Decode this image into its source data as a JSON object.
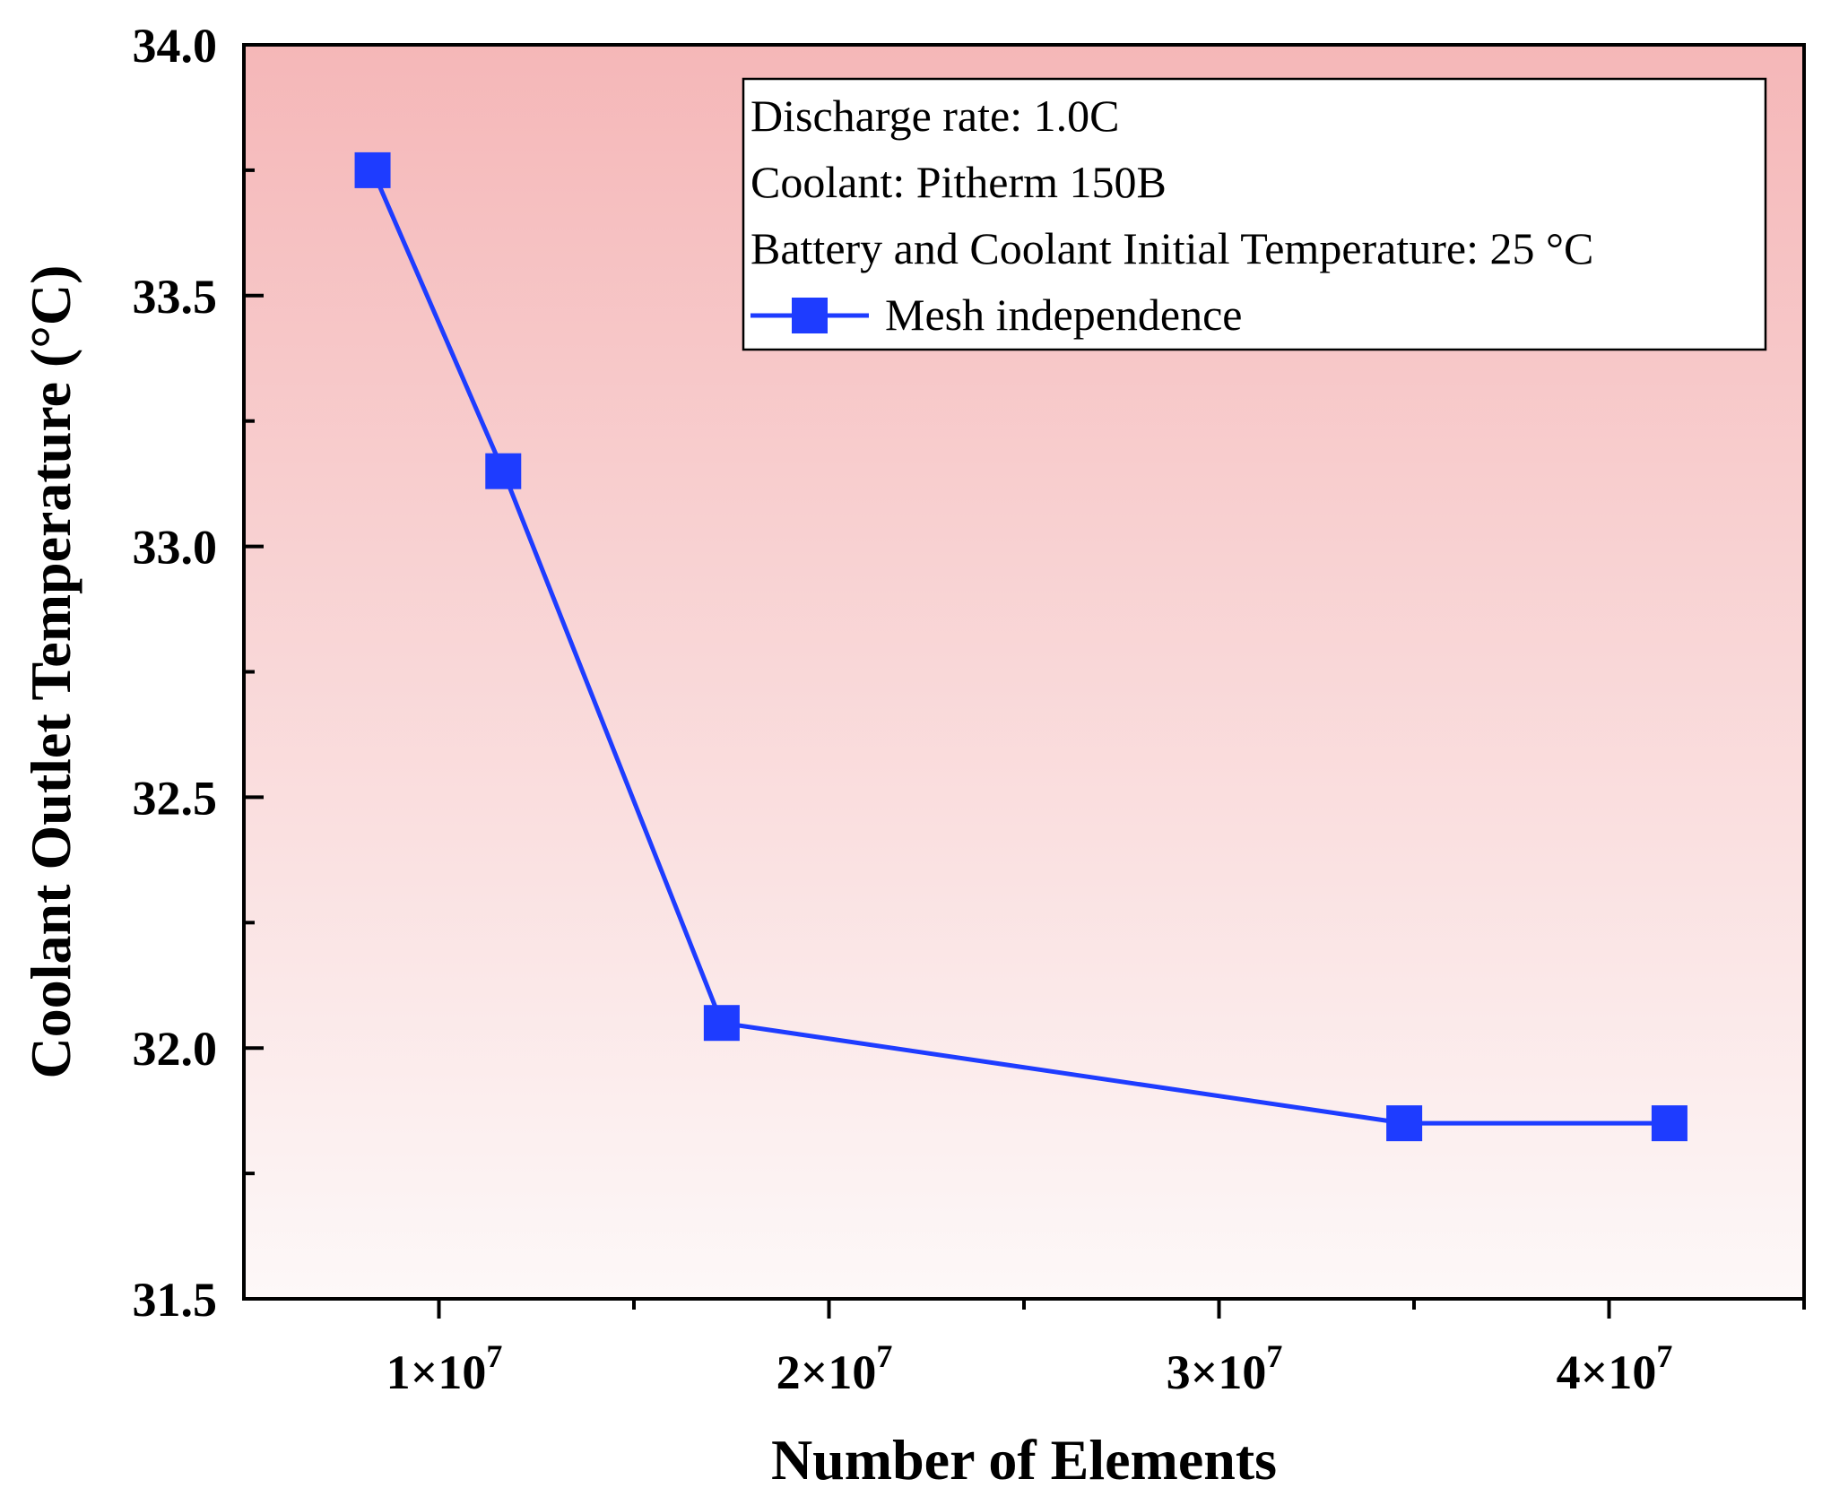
{
  "chart_data": {
    "type": "line",
    "title": "",
    "xlabel": "Number of Elements",
    "ylabel": "Coolant Outlet Temperature (°C)",
    "xlim": [
      5000000,
      45000000
    ],
    "ylim": [
      31.5,
      34.0
    ],
    "x_ticks": [
      {
        "value": 10000000,
        "mantissa": "1×10",
        "exp": "7"
      },
      {
        "value": 20000000,
        "mantissa": "2×10",
        "exp": "7"
      },
      {
        "value": 30000000,
        "mantissa": "3×10",
        "exp": "7"
      },
      {
        "value": 40000000,
        "mantissa": "4×10",
        "exp": "7"
      }
    ],
    "y_ticks": [
      "31.5",
      "32.0",
      "32.5",
      "33.0",
      "33.5",
      "34.0"
    ],
    "legend_placement": "top-right",
    "annotations": [
      "Discharge rate: 1.0C",
      "Coolant: Pitherm 150B",
      "Battery and Coolant Initial Temperature: 25 °C"
    ],
    "series": [
      {
        "name": "Mesh independence",
        "color": "#1e3cff",
        "marker": "square",
        "x": [
          8300000,
          11650000,
          17250000,
          34750000,
          41550000
        ],
        "y": [
          33.75,
          33.15,
          32.05,
          31.85,
          31.85
        ]
      }
    ],
    "background_gradient": {
      "top": "#f5b7b8",
      "bottom": "#fdf8f8"
    }
  }
}
